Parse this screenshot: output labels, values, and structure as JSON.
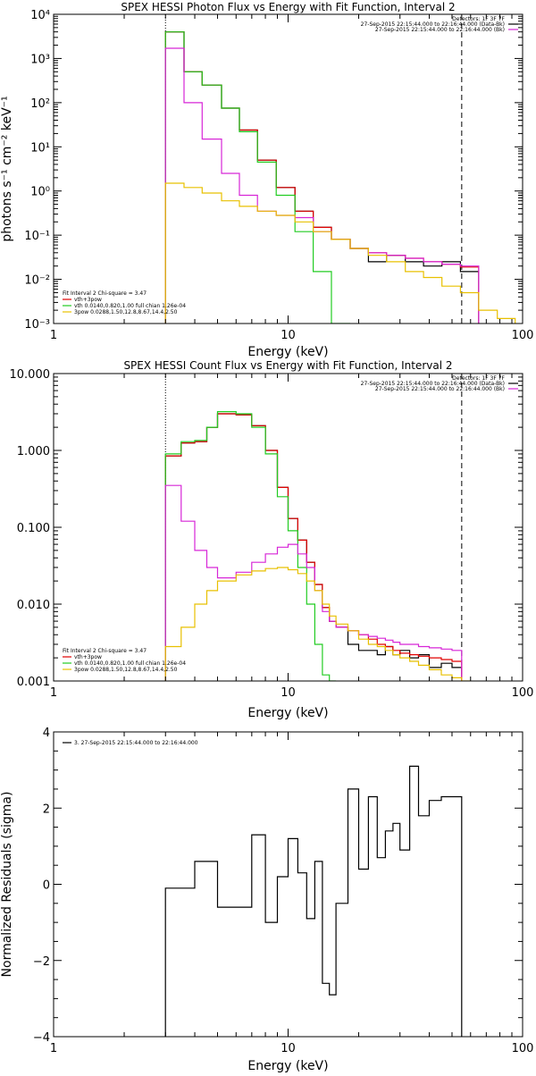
{
  "chart_data": [
    {
      "type": "line",
      "title": "SPEX HESSI Photon Flux vs Energy with Fit Function, Interval 2",
      "xlabel": "Energy (keV)",
      "ylabel": "photons s⁻¹ cm⁻² keV⁻¹",
      "xscale": "log",
      "yscale": "log",
      "xlim": [
        1,
        100
      ],
      "ylim": [
        0.001,
        10000
      ],
      "x_ticks": [
        {
          "v": 1,
          "label": "1"
        },
        {
          "v": 10,
          "label": "10"
        },
        {
          "v": 100,
          "label": "100"
        }
      ],
      "y_ticks": [
        {
          "v": 0.001,
          "label": "10⁻³"
        },
        {
          "v": 0.01,
          "label": "10⁻²"
        },
        {
          "v": 0.1,
          "label": "10⁻¹"
        },
        {
          "v": 1,
          "label": "10⁰"
        },
        {
          "v": 10,
          "label": "10¹"
        },
        {
          "v": 100,
          "label": "10²"
        },
        {
          "v": 1000,
          "label": "10³"
        },
        {
          "v": 10000,
          "label": "10⁴"
        }
      ],
      "vlines": [
        {
          "x": 3,
          "style": "dotted"
        },
        {
          "x": 55,
          "style": "dashed"
        }
      ],
      "info_lines": [
        "Detectors: 1F 3F 7F",
        "27-Sep-2015 22:15:44.000 to 22:16:44.000 (Data-Bk)",
        "27-Sep-2015 22:15:44.000 to 22:16:44.000 (Bk)"
      ],
      "info_colors": [
        "#000000",
        "#000000",
        "#d726d7"
      ],
      "legend_lines": [
        "Fit Interval 2   Chi-square = 3.47",
        "vth+3pow",
        "vth 0.0140,0.820,1.00  full chian 1.26e-04",
        "3pow 0.0288,1.50,12.8,8.67,14.4,2.50"
      ],
      "legend_colors": [
        "#000000",
        "#e00000",
        "#22cc22",
        "#e8c000"
      ],
      "edges": [
        3,
        3.6,
        4.3,
        5.2,
        6.2,
        7.4,
        8.9,
        10.7,
        12.8,
        15.3,
        18.4,
        22,
        26.3,
        31.6,
        37.8,
        45.3,
        54.3,
        65,
        78,
        93
      ],
      "series": [
        {
          "color": "#000000",
          "values": [
            4000,
            500,
            250,
            75,
            24,
            5,
            1.2,
            0.35,
            0.15,
            0.08,
            0.05,
            0.025,
            0.035,
            0.025,
            0.02,
            0.025,
            0.015,
            null,
            null
          ]
        },
        {
          "color": "#e00000",
          "values": [
            4000,
            500,
            250,
            75,
            24,
            5,
            1.2,
            0.35,
            0.15,
            0.08,
            0.05,
            0.04,
            0.035,
            0.03,
            0.025,
            0.022,
            0.019,
            null,
            null
          ]
        },
        {
          "color": "#22cc22",
          "values": [
            4000,
            500,
            250,
            75,
            22,
            4.5,
            0.8,
            0.12,
            0.015,
            0.001,
            null,
            null,
            null,
            null,
            null,
            null,
            null,
            null,
            null
          ]
        },
        {
          "color": "#d726d7",
          "values": [
            1700,
            100,
            15,
            2.5,
            0.8,
            0.35,
            0.28,
            0.25,
            0.12,
            0.08,
            0.05,
            0.04,
            0.035,
            0.03,
            0.025,
            0.022,
            0.02,
            null,
            null
          ]
        },
        {
          "color": "#e8c000",
          "values": [
            1.5,
            1.2,
            0.9,
            0.6,
            0.45,
            0.35,
            0.28,
            0.2,
            0.12,
            0.08,
            0.05,
            0.035,
            0.025,
            0.015,
            0.011,
            0.007,
            0.005,
            0.002,
            0.0013
          ]
        }
      ]
    },
    {
      "type": "line",
      "title": "SPEX HESSI Count Flux vs Energy with Fit Function, Interval 2",
      "xlabel": "Energy (keV)",
      "ylabel": "",
      "xscale": "log",
      "yscale": "log",
      "xlim": [
        1,
        100
      ],
      "ylim": [
        0.001,
        10
      ],
      "x_ticks": [
        {
          "v": 1,
          "label": "1"
        },
        {
          "v": 10,
          "label": "10"
        },
        {
          "v": 100,
          "label": "100"
        }
      ],
      "y_ticks": [
        {
          "v": 0.001,
          "label": "0.001"
        },
        {
          "v": 0.01,
          "label": "0.010"
        },
        {
          "v": 0.1,
          "label": "0.100"
        },
        {
          "v": 1,
          "label": "1.000"
        },
        {
          "v": 10,
          "label": "10.000"
        }
      ],
      "vlines": [
        {
          "x": 3,
          "style": "dotted"
        },
        {
          "x": 55,
          "style": "dashed"
        }
      ],
      "info_lines": [
        "Detectors: 1F 3F 7F",
        "27-Sep-2015 22:15:44.000 to 22:16:44.000 (Data-Bk)",
        "27-Sep-2015 22:15:44.000 to 22:16:44.000 (Bk)"
      ],
      "info_colors": [
        "#000000",
        "#000000",
        "#d726d7"
      ],
      "legend_lines": [
        "Fit Interval 2   Chi-square = 3.47",
        "vth+3pow",
        "vth 0.0140,0.820,1.00  full chian 1.26e-04",
        "3pow 0.0288,1.50,12.8,8.67,14.4,2.50"
      ],
      "legend_colors": [
        "#000000",
        "#e00000",
        "#22cc22",
        "#e8c000"
      ],
      "edges": [
        3,
        3.5,
        4,
        4.5,
        5,
        6,
        7,
        8,
        9,
        10,
        11,
        12,
        13,
        14,
        15,
        16,
        18,
        20,
        22,
        24,
        26,
        28,
        30,
        33,
        36,
        40,
        45,
        50,
        55,
        60,
        65,
        70,
        75,
        80,
        85,
        90,
        95,
        100
      ],
      "series": [
        {
          "color": "#000000",
          "values": [
            0.85,
            1.25,
            1.3,
            2.0,
            3.0,
            2.9,
            2.1,
            1.0,
            0.33,
            0.13,
            0.068,
            0.035,
            0.018,
            0.009,
            0.006,
            0.005,
            0.003,
            0.0025,
            0.0025,
            0.0022,
            0.0028,
            0.0022,
            0.0025,
            0.002,
            0.0022,
            0.0015,
            0.0017,
            0.0015,
            null,
            null,
            null,
            null,
            null,
            null,
            null,
            null,
            null
          ]
        },
        {
          "color": "#e00000",
          "values": [
            0.85,
            1.25,
            1.3,
            2.0,
            3.0,
            2.9,
            2.1,
            1.0,
            0.33,
            0.13,
            0.068,
            0.035,
            0.018,
            0.009,
            0.006,
            0.005,
            0.0045,
            0.004,
            0.0035,
            0.003,
            0.0028,
            0.0025,
            0.0023,
            0.0022,
            0.0021,
            0.002,
            0.0019,
            0.0018,
            null,
            null,
            null,
            null,
            null,
            null,
            null,
            null,
            null
          ]
        },
        {
          "color": "#22cc22",
          "values": [
            0.9,
            1.3,
            1.35,
            2.0,
            3.2,
            3.0,
            2.0,
            0.9,
            0.25,
            0.09,
            0.03,
            0.01,
            0.003,
            0.0012,
            0.001,
            null,
            null,
            null,
            null,
            null,
            null,
            null,
            null,
            null,
            null,
            null,
            null,
            null,
            null,
            null,
            null,
            null,
            null,
            null,
            null,
            null,
            null
          ]
        },
        {
          "color": "#d726d7",
          "values": [
            0.35,
            0.12,
            0.05,
            0.03,
            0.022,
            0.026,
            0.035,
            0.045,
            0.055,
            0.06,
            0.045,
            0.03,
            0.015,
            0.008,
            0.006,
            0.005,
            0.0045,
            0.004,
            0.0038,
            0.0036,
            0.0034,
            0.0032,
            0.003,
            0.003,
            0.0028,
            0.0027,
            0.0026,
            0.0025,
            null,
            null,
            null,
            null,
            null,
            null,
            null,
            null,
            null
          ]
        },
        {
          "color": "#e8c000",
          "values": [
            0.0028,
            0.005,
            0.01,
            0.015,
            0.02,
            0.024,
            0.027,
            0.029,
            0.03,
            0.028,
            0.025,
            0.02,
            0.015,
            0.01,
            0.007,
            0.0055,
            0.0045,
            0.0035,
            0.003,
            0.0028,
            0.0025,
            0.0022,
            0.002,
            0.0018,
            0.0016,
            0.0014,
            0.0012,
            0.0011,
            0.001,
            null,
            null,
            null,
            null,
            null,
            null,
            null,
            null
          ]
        }
      ]
    },
    {
      "type": "line",
      "title": "",
      "xlabel": "Energy (keV)",
      "ylabel": "Normalized Residuals (sigma)",
      "xscale": "log",
      "yscale": "linear",
      "xlim": [
        1,
        100
      ],
      "ylim": [
        -4,
        4
      ],
      "x_ticks": [
        {
          "v": 1,
          "label": "1"
        },
        {
          "v": 10,
          "label": "10"
        },
        {
          "v": 100,
          "label": "100"
        }
      ],
      "y_ticks": [
        {
          "v": -4,
          "label": "−4"
        },
        {
          "v": -2,
          "label": "−2"
        },
        {
          "v": 0,
          "label": "0"
        },
        {
          "v": 2,
          "label": "2"
        },
        {
          "v": 4,
          "label": "4"
        }
      ],
      "vlines": [],
      "legend_lines": [
        "3. 27-Sep-2015 22:15:44.000 to 22:16:44.000"
      ],
      "legend_colors": [
        "#000000"
      ],
      "edges": [
        3,
        3.5,
        4,
        4.5,
        5,
        6,
        7,
        8,
        9,
        10,
        11,
        12,
        13,
        14,
        15,
        16,
        18,
        20,
        22,
        24,
        26,
        28,
        30,
        33,
        36,
        40,
        45,
        50,
        55
      ],
      "series": [
        {
          "color": "#000000",
          "values": [
            -0.1,
            -0.1,
            0.6,
            0.6,
            -0.6,
            -0.6,
            1.3,
            -1.0,
            0.2,
            1.2,
            0.3,
            -0.9,
            0.6,
            -2.6,
            -2.9,
            -0.5,
            2.5,
            0.4,
            2.3,
            0.7,
            1.4,
            1.6,
            0.9,
            3.1,
            1.8,
            2.2,
            2.3,
            2.3
          ]
        }
      ]
    }
  ]
}
